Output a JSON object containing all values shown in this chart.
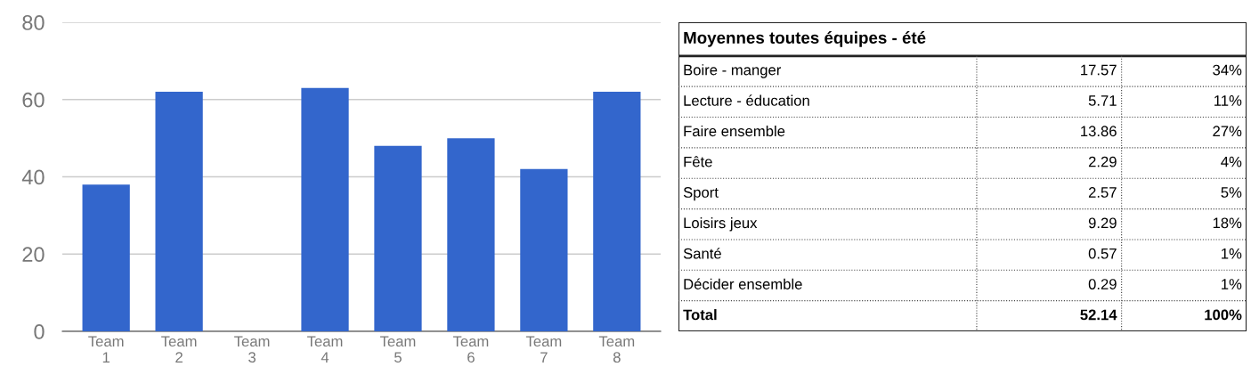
{
  "chart_data": [
    {
      "type": "bar",
      "categories": [
        "Team 1",
        "Team 2",
        "Team 3",
        "Team 4",
        "Team 5",
        "Team 6",
        "Team 7",
        "Team 8"
      ],
      "values": [
        38,
        62,
        0,
        63,
        48,
        50,
        42,
        62
      ],
      "color": "#3366cc",
      "ylim": [
        0,
        80
      ],
      "yticks": [
        0,
        20,
        40,
        60,
        80
      ],
      "grid": "y",
      "legend": false
    },
    {
      "type": "other",
      "title": "Moyennes toutes équipes - été",
      "categories": [
        "Boire - manger",
        "Lecture - éducation",
        "Faire ensemble",
        "Fête",
        "Sport",
        "Loisirs jeux",
        "Santé",
        "Décider ensemble",
        "Total"
      ],
      "series": [
        {
          "values": [
            17.57,
            5.71,
            13.86,
            2.29,
            2.57,
            9.29,
            0.57,
            0.29,
            52.14
          ]
        },
        {
          "values": [
            34,
            11,
            27,
            4,
            5,
            18,
            1,
            1,
            100
          ],
          "value_labels": [
            "34%",
            "11%",
            "27%",
            "4%",
            "5%",
            "18%",
            "1%",
            "1%",
            "100%"
          ]
        }
      ],
      "data_labels": true
    }
  ]
}
